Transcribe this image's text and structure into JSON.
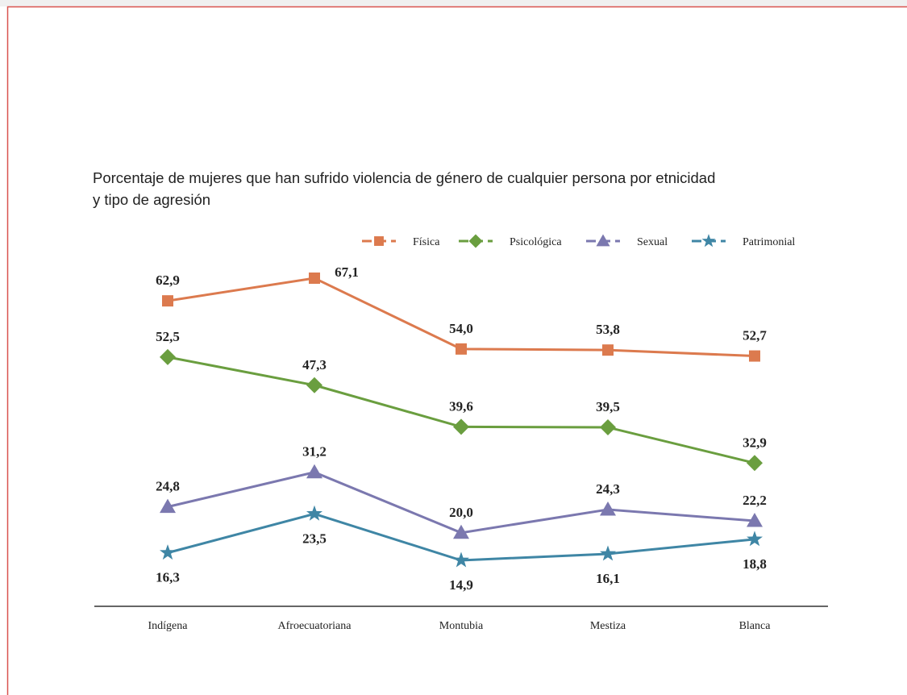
{
  "chart_data": {
    "type": "line",
    "title": [
      "Porcentaje de mujeres que han sufrido violencia de género de cualquier persona por etnicidad",
      "y tipo de agresión"
    ],
    "categories": [
      "Indígena",
      "Afroecuatoriana",
      "Montubia",
      "Mestiza",
      "Blanca"
    ],
    "series": [
      {
        "name": "Física",
        "color": "#dc7a4e",
        "marker": "square",
        "values": [
          62.9,
          67.1,
          54.0,
          53.8,
          52.7
        ],
        "value_labels": [
          "62,9",
          "67,1",
          "54,0",
          "53,8",
          "52,7"
        ]
      },
      {
        "name": "Psicológica",
        "color": "#6a9e3f",
        "marker": "diamond",
        "values": [
          52.5,
          47.3,
          39.6,
          39.5,
          32.9
        ],
        "value_labels": [
          "52,5",
          "47,3",
          "39,6",
          "39,5",
          "32,9"
        ]
      },
      {
        "name": "Sexual",
        "color": "#7b78af",
        "marker": "triangle",
        "values": [
          24.8,
          31.2,
          20.0,
          24.3,
          22.2
        ],
        "value_labels": [
          "24,8",
          "31,2",
          "20,0",
          "24,3",
          "22,2"
        ]
      },
      {
        "name": "Patrimonial",
        "color": "#3f86a5",
        "marker": "star",
        "values": [
          16.3,
          23.5,
          14.9,
          16.1,
          18.8
        ],
        "value_labels": [
          "16,3",
          "23,5",
          "14,9",
          "16,1",
          "18,8"
        ]
      }
    ]
  }
}
